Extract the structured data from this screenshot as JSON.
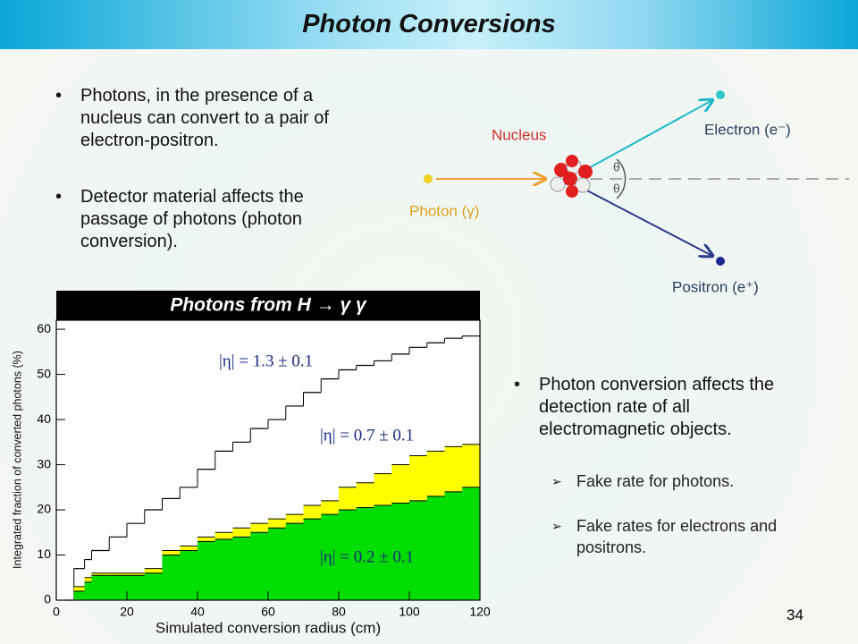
{
  "title": "Photon Conversions",
  "bullets": [
    "Photons, in the presence of a nucleus can convert to a pair of electron-positron.",
    "Detector material affects the passage of photons (photon conversion)."
  ],
  "diagram": {
    "nucleus": "Nucleus",
    "photon": "Photon (γ)",
    "electron": "Electron (e⁻)",
    "positron": "Positron (e⁺)",
    "angle": "θ"
  },
  "chart_data": {
    "type": "step",
    "title": "Photons from H → γ γ",
    "x_label": "Simulated conversion radius (cm)",
    "y_label": "Integrated fraction of converted photons (%)",
    "x": [
      3,
      5,
      8,
      10,
      15,
      20,
      25,
      30,
      35,
      40,
      45,
      50,
      55,
      60,
      65,
      70,
      75,
      80,
      85,
      90,
      95,
      100,
      105,
      110,
      115
    ],
    "series": [
      {
        "name": "|η| = 1.3 ± 0.1",
        "color": "#000000",
        "filled": false,
        "values": [
          0,
          7,
          9,
          11,
          14,
          17,
          20,
          22.5,
          25,
          29,
          33,
          35,
          38,
          40,
          43,
          46,
          49,
          51,
          52,
          53,
          54.5,
          56,
          57,
          58,
          58.5
        ]
      },
      {
        "name": "|η| = 0.7 ± 0.1",
        "color": "#ffff00",
        "filled": true,
        "values": [
          0,
          3,
          5,
          6,
          6,
          6,
          7,
          11,
          12,
          14,
          15,
          16,
          17,
          18,
          19,
          21,
          22,
          25,
          26,
          28,
          30,
          32,
          33,
          34,
          34.5
        ]
      },
      {
        "name": "|η| = 0.2 ± 0.1",
        "color": "#00dd00",
        "filled": true,
        "values": [
          0,
          2,
          4,
          5.5,
          5.5,
          5.5,
          6,
          10,
          11,
          13,
          13.5,
          14,
          15,
          16,
          17,
          18,
          19,
          20,
          20.5,
          21,
          21.5,
          22,
          23,
          24,
          25
        ]
      }
    ],
    "xlim": [
      0,
      120
    ],
    "ylim": [
      0,
      62
    ],
    "xticks": [
      0,
      20,
      40,
      60,
      80,
      100,
      120
    ],
    "yticks": [
      0,
      10,
      20,
      30,
      40,
      50,
      60
    ]
  },
  "right_bullet": "Photon conversion affects the detection rate of all electromagnetic objects.",
  "sub_bullets": [
    "Fake rate for photons.",
    "Fake rates for electrons and positrons."
  ],
  "page_number": "34"
}
